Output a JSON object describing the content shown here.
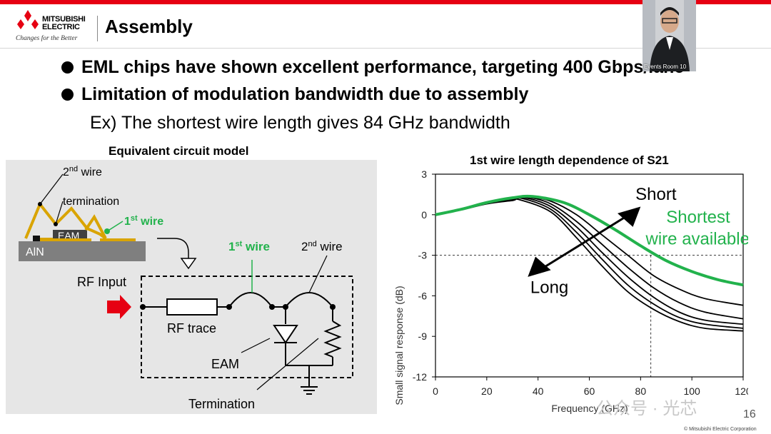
{
  "header": {
    "logo_text_1": "MITSUBISHI",
    "logo_text_2": "ELECTRIC",
    "logo_tagline": "Changes for the Better",
    "title": "Assembly"
  },
  "bullets": [
    "EML chips have shown excellent performance, targeting 400 Gbps/lane",
    "Limitation of modulation bandwidth due to assembly"
  ],
  "sub_point": "Ex) The shortest wire length gives 84 GHz bandwidth",
  "video": {
    "label": "Events Room 10"
  },
  "circuit": {
    "heading": "Equivalent circuit model",
    "wire2_label_pre": "2",
    "wire2_label_sup": "nd",
    "wire2_label_post": " wire",
    "termination_top": "termination",
    "wire1_label_pre": "1",
    "wire1_label_sup": "st",
    "wire1_label_post": " wire",
    "eam_chip": "EAM",
    "substrate": "AlN",
    "rf_input": "RF Input",
    "rf_trace": "RF trace",
    "eam": "EAM",
    "termination_bottom": "Termination",
    "accent_green": "#22b24c",
    "accent_gold": "#d9a400",
    "arrow_red": "#e60012"
  },
  "chart_data": {
    "type": "line",
    "title": "1st wire length dependence of S21",
    "xlabel": "Frequency (GHz)",
    "ylabel": "Small signal response (dB)",
    "xlim": [
      0,
      120
    ],
    "ylim": [
      -12,
      3
    ],
    "xticks": [
      0,
      20,
      40,
      60,
      80,
      100,
      120
    ],
    "yticks": [
      3,
      0,
      -3,
      -6,
      -9,
      -12
    ],
    "reference_lines": {
      "y": -3,
      "x": 84
    },
    "annotations": {
      "short": "Short",
      "long": "Long",
      "shortest_1": "Shortest",
      "shortest_2": "wire available"
    },
    "series": [
      {
        "color": "#22b24c",
        "x": [
          0,
          10,
          20,
          30,
          38,
          50,
          60,
          70,
          80,
          90,
          100,
          110,
          120
        ],
        "values": [
          0,
          0.4,
          0.9,
          1.25,
          1.35,
          0.9,
          0,
          -1.1,
          -2.3,
          -3.4,
          -4.2,
          -4.8,
          -5.2
        ]
      },
      {
        "color": "#000000",
        "x": [
          0,
          10,
          20,
          30,
          37,
          45,
          55,
          65,
          75,
          85,
          95,
          105,
          120
        ],
        "values": [
          0,
          0.4,
          0.9,
          1.2,
          1.3,
          1.0,
          0,
          -1.5,
          -3.0,
          -4.5,
          -5.5,
          -6.2,
          -6.7
        ]
      },
      {
        "color": "#000000",
        "x": [
          0,
          10,
          20,
          30,
          36,
          45,
          55,
          65,
          75,
          85,
          95,
          105,
          120
        ],
        "values": [
          0,
          0.4,
          0.9,
          1.2,
          1.3,
          0.8,
          -0.5,
          -2.2,
          -3.9,
          -5.4,
          -6.5,
          -7.2,
          -7.7
        ]
      },
      {
        "color": "#000000",
        "x": [
          0,
          10,
          20,
          30,
          35,
          45,
          55,
          65,
          75,
          85,
          95,
          105,
          120
        ],
        "values": [
          0,
          0.4,
          0.9,
          1.15,
          1.25,
          0.6,
          -0.9,
          -2.8,
          -4.6,
          -6.1,
          -7.2,
          -7.8,
          -8.1
        ]
      },
      {
        "color": "#000000",
        "x": [
          0,
          10,
          20,
          30,
          34,
          45,
          55,
          65,
          75,
          85,
          95,
          105,
          120
        ],
        "values": [
          0,
          0.4,
          0.85,
          1.1,
          1.2,
          0.4,
          -1.3,
          -3.3,
          -5.2,
          -6.6,
          -7.6,
          -8.1,
          -8.4
        ]
      },
      {
        "color": "#000000",
        "x": [
          0,
          10,
          20,
          30,
          33,
          45,
          55,
          65,
          75,
          85,
          95,
          105,
          120
        ],
        "values": [
          0,
          0.35,
          0.8,
          1.05,
          1.1,
          0.2,
          -1.7,
          -3.8,
          -5.7,
          -7.0,
          -7.9,
          -8.4,
          -8.6
        ]
      }
    ]
  },
  "footer": {
    "watermark": "公众号 · 光芯",
    "page_number": "16",
    "copyright": "© Mitsubishi Electric Corporation"
  }
}
